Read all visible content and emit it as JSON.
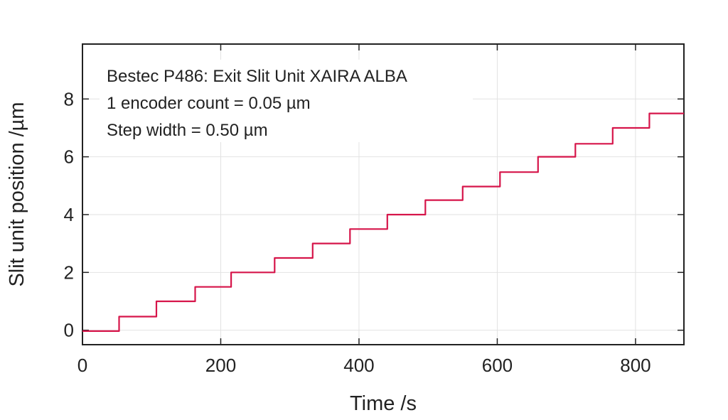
{
  "chart_data": {
    "type": "line",
    "title": "",
    "xlabel": "Time /s",
    "ylabel": "Slit unit position /µm",
    "xlim": [
      0,
      870
    ],
    "ylim": [
      -0.5,
      9.9
    ],
    "xticks": [
      0,
      200,
      400,
      600,
      800
    ],
    "yticks": [
      0,
      2,
      4,
      6,
      8
    ],
    "xtick_labels": [
      "0",
      "200",
      "400",
      "600",
      "800"
    ],
    "ytick_labels": [
      "0",
      "2",
      "4",
      "6",
      "8"
    ],
    "grid": true,
    "legend": "none",
    "annotations": [
      "Bestec P486: Exit Slit Unit XAIRA ALBA",
      "1 encoder count = 0.05 µm",
      "Step width = 0.50 µm"
    ],
    "series": [
      {
        "color": "#d6154a",
        "x": [
          0,
          53,
          53,
          107,
          107,
          163,
          163,
          215,
          215,
          278,
          278,
          333,
          333,
          387,
          387,
          441,
          441,
          496,
          496,
          550,
          550,
          604,
          604,
          659,
          659,
          713,
          713,
          767,
          767,
          820,
          820,
          870
        ],
        "y": [
          -0.03,
          -0.03,
          0.47,
          0.47,
          1.0,
          1.0,
          1.5,
          1.5,
          2.0,
          2.0,
          2.5,
          2.5,
          3.0,
          3.0,
          3.5,
          3.5,
          4.0,
          4.0,
          4.5,
          4.5,
          4.97,
          4.97,
          5.47,
          5.47,
          6.0,
          6.0,
          6.45,
          6.45,
          7.0,
          7.0,
          7.5,
          7.5
        ]
      }
    ]
  }
}
